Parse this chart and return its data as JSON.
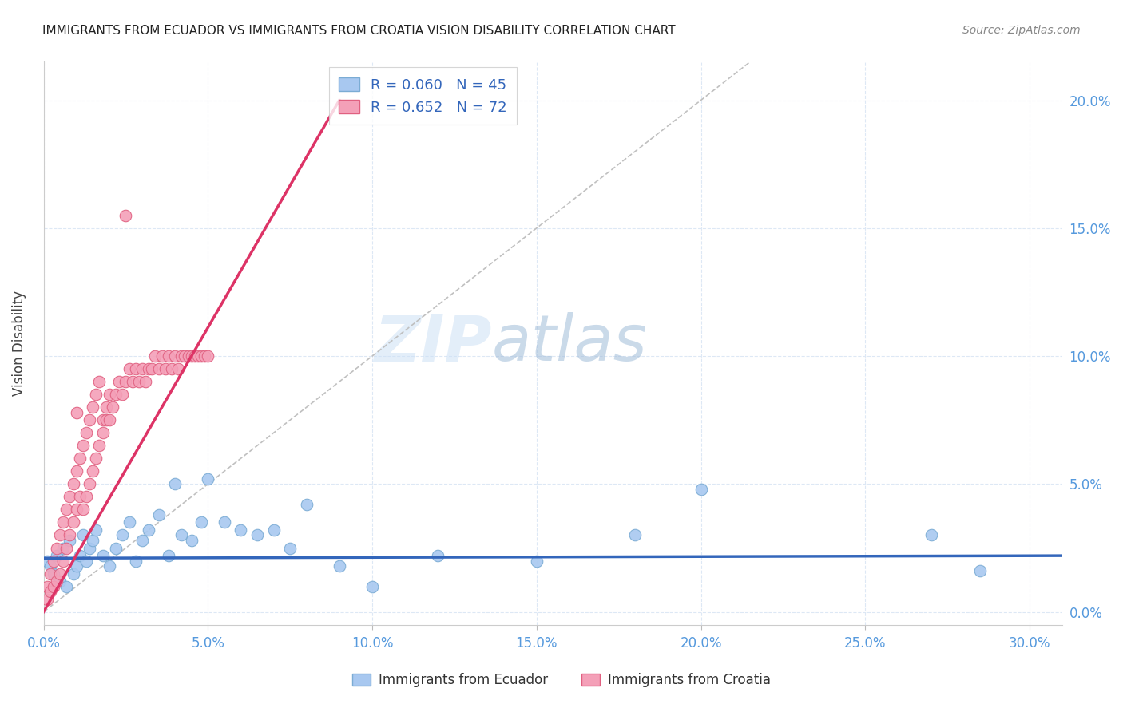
{
  "title": "IMMIGRANTS FROM ECUADOR VS IMMIGRANTS FROM CROATIA VISION DISABILITY CORRELATION CHART",
  "source": "Source: ZipAtlas.com",
  "ylabel": "Vision Disability",
  "xlabel_ticks": [
    "0.0%",
    "5.0%",
    "10.0%",
    "15.0%",
    "20.0%",
    "25.0%",
    "30.0%"
  ],
  "xlabel_vals": [
    0.0,
    0.05,
    0.1,
    0.15,
    0.2,
    0.25,
    0.3
  ],
  "ylabel_ticks": [
    "0.0%",
    "5.0%",
    "10.0%",
    "15.0%",
    "20.0%"
  ],
  "ylabel_vals": [
    0.0,
    0.05,
    0.1,
    0.15,
    0.2
  ],
  "xlim": [
    0.0,
    0.31
  ],
  "ylim": [
    -0.005,
    0.215
  ],
  "ecuador_color": "#a8c8f0",
  "ecuador_edge": "#7bacd4",
  "croatia_color": "#f4a0b8",
  "croatia_edge": "#e06080",
  "ecuador_R": 0.06,
  "ecuador_N": 45,
  "croatia_R": 0.652,
  "croatia_N": 72,
  "trendline_ecuador_color": "#3366bb",
  "trendline_croatia_color": "#dd3366",
  "trendline_dashed_color": "#c0c0c0",
  "watermark_zip": "ZIP",
  "watermark_atlas": "atlas",
  "legend_label_ecuador": "Immigrants from Ecuador",
  "legend_label_croatia": "Immigrants from Croatia",
  "ecuador_x": [
    0.001,
    0.002,
    0.003,
    0.004,
    0.005,
    0.006,
    0.007,
    0.008,
    0.009,
    0.01,
    0.011,
    0.012,
    0.013,
    0.014,
    0.015,
    0.016,
    0.018,
    0.02,
    0.022,
    0.024,
    0.026,
    0.028,
    0.03,
    0.032,
    0.035,
    0.038,
    0.04,
    0.042,
    0.045,
    0.048,
    0.05,
    0.055,
    0.06,
    0.065,
    0.07,
    0.075,
    0.08,
    0.09,
    0.1,
    0.12,
    0.15,
    0.18,
    0.2,
    0.27,
    0.285
  ],
  "ecuador_y": [
    0.02,
    0.018,
    0.015,
    0.022,
    0.012,
    0.025,
    0.01,
    0.028,
    0.015,
    0.018,
    0.022,
    0.03,
    0.02,
    0.025,
    0.028,
    0.032,
    0.022,
    0.018,
    0.025,
    0.03,
    0.035,
    0.02,
    0.028,
    0.032,
    0.038,
    0.022,
    0.05,
    0.03,
    0.028,
    0.035,
    0.052,
    0.035,
    0.032,
    0.03,
    0.032,
    0.025,
    0.042,
    0.018,
    0.01,
    0.022,
    0.02,
    0.03,
    0.048,
    0.03,
    0.016
  ],
  "croatia_x": [
    0.001,
    0.001,
    0.002,
    0.002,
    0.003,
    0.003,
    0.004,
    0.004,
    0.005,
    0.005,
    0.006,
    0.006,
    0.007,
    0.007,
    0.008,
    0.008,
    0.009,
    0.009,
    0.01,
    0.01,
    0.011,
    0.011,
    0.012,
    0.012,
    0.013,
    0.013,
    0.014,
    0.014,
    0.015,
    0.015,
    0.016,
    0.016,
    0.017,
    0.017,
    0.018,
    0.018,
    0.019,
    0.019,
    0.02,
    0.02,
    0.021,
    0.022,
    0.023,
    0.024,
    0.025,
    0.026,
    0.027,
    0.028,
    0.029,
    0.03,
    0.031,
    0.032,
    0.033,
    0.034,
    0.035,
    0.036,
    0.037,
    0.038,
    0.039,
    0.04,
    0.041,
    0.042,
    0.043,
    0.044,
    0.045,
    0.046,
    0.047,
    0.048,
    0.049,
    0.05,
    0.01,
    0.025
  ],
  "croatia_y": [
    0.005,
    0.01,
    0.008,
    0.015,
    0.01,
    0.02,
    0.012,
    0.025,
    0.015,
    0.03,
    0.02,
    0.035,
    0.025,
    0.04,
    0.03,
    0.045,
    0.035,
    0.05,
    0.04,
    0.055,
    0.045,
    0.06,
    0.04,
    0.065,
    0.045,
    0.07,
    0.05,
    0.075,
    0.055,
    0.08,
    0.06,
    0.085,
    0.065,
    0.09,
    0.07,
    0.075,
    0.075,
    0.08,
    0.075,
    0.085,
    0.08,
    0.085,
    0.09,
    0.085,
    0.09,
    0.095,
    0.09,
    0.095,
    0.09,
    0.095,
    0.09,
    0.095,
    0.095,
    0.1,
    0.095,
    0.1,
    0.095,
    0.1,
    0.095,
    0.1,
    0.095,
    0.1,
    0.1,
    0.1,
    0.1,
    0.1,
    0.1,
    0.1,
    0.1,
    0.1,
    0.078,
    0.155
  ],
  "croatia_outlier_x": [
    0.033
  ],
  "croatia_outlier_y": [
    0.155
  ],
  "ecuador_trendline_x": [
    0.0,
    0.31
  ],
  "ecuador_trendline_y": [
    0.021,
    0.022
  ],
  "croatia_trendline_x0": 0.0,
  "croatia_trendline_y0": 0.0,
  "croatia_trendline_x1": 0.09,
  "croatia_trendline_y1": 0.2,
  "dashed_line_x": [
    0.0,
    0.215
  ],
  "dashed_line_y": [
    0.0,
    0.215
  ]
}
